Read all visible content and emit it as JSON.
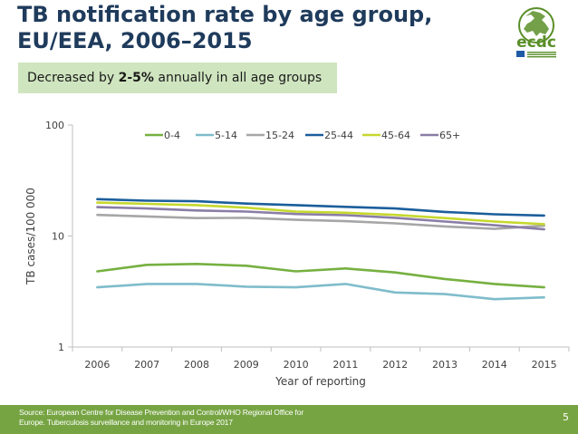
{
  "slide": {
    "title": "TB notification rate by age group, EU/EEA, 2006–2015",
    "callout_prefix": "Decreased by ",
    "callout_bold": "2-5%",
    "callout_suffix": " annually in all age groups",
    "source": "Source: European Centre for Disease Prevention and Control/WHO Regional Office for Europe. Tuberculosis surveillance and monitoring in Europe 2017",
    "page_number": "5",
    "logo_text": "ecdc"
  },
  "colors": {
    "title": "#1f3b5c",
    "callout_bg": "#cfe5bf",
    "footer_bg": "#76a443",
    "logo_green": "#5a8f29",
    "logo_blue": "#1f5aa6"
  },
  "chart_data": {
    "type": "line",
    "xlabel": "Year of reporting",
    "ylabel": "TB cases/100 000",
    "y_scale": "log",
    "ylim": [
      1,
      100
    ],
    "y_ticks": [
      1,
      10,
      100
    ],
    "y_tick_labels": [
      "1",
      "10",
      "100"
    ],
    "x": [
      "2006",
      "2007",
      "2008",
      "2009",
      "2010",
      "2011",
      "2012",
      "2013",
      "2014",
      "2015"
    ],
    "legend_position": "top",
    "grid": false,
    "series": [
      {
        "name": "0-4",
        "color": "#76b041",
        "values": [
          4.8,
          5.5,
          5.6,
          5.4,
          4.8,
          5.1,
          4.7,
          4.1,
          3.7,
          3.45
        ]
      },
      {
        "name": "5-14",
        "color": "#7fbccb",
        "values": [
          3.45,
          3.7,
          3.7,
          3.5,
          3.45,
          3.7,
          3.1,
          3.0,
          2.7,
          2.8
        ]
      },
      {
        "name": "15-24",
        "color": "#a6a6a6",
        "values": [
          15.5,
          15.0,
          14.5,
          14.6,
          14.0,
          13.6,
          13.0,
          12.2,
          11.6,
          12.4
        ]
      },
      {
        "name": "25-44",
        "color": "#1b5e9b",
        "values": [
          21.5,
          20.8,
          20.6,
          19.6,
          19.0,
          18.3,
          17.7,
          16.5,
          15.7,
          15.3
        ]
      },
      {
        "name": "45-64",
        "color": "#c6d82e",
        "values": [
          20.0,
          19.5,
          19.0,
          18.0,
          16.6,
          16.2,
          15.5,
          14.5,
          13.5,
          12.8
        ]
      },
      {
        "name": "65+",
        "color": "#8a7da6",
        "values": [
          18.2,
          17.7,
          17.0,
          16.6,
          15.8,
          15.4,
          14.6,
          13.5,
          12.5,
          11.5
        ]
      }
    ]
  }
}
